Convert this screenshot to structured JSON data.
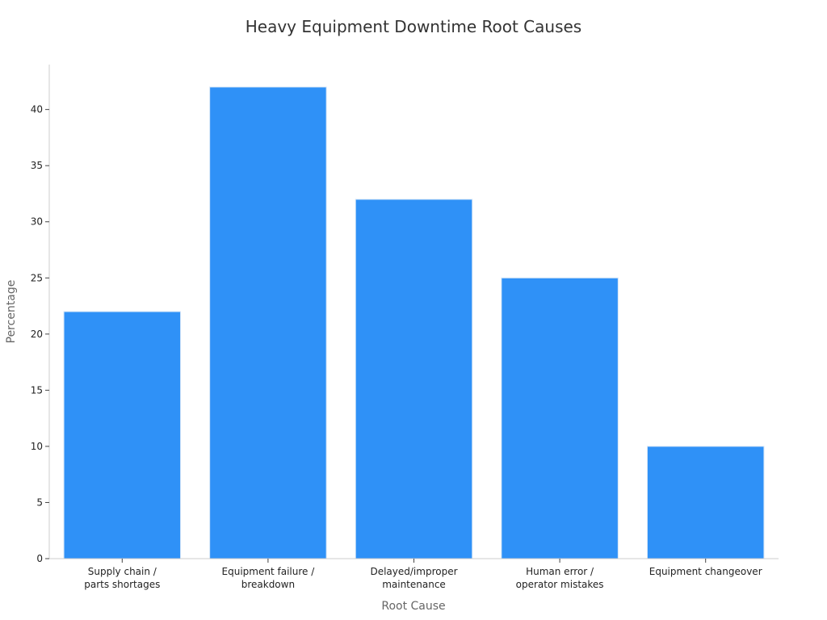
{
  "chart_data": {
    "type": "bar",
    "title": "Heavy Equipment Downtime Root Causes",
    "xlabel": "Root Cause",
    "ylabel": "Percentage",
    "categories": [
      [
        "Supply chain /",
        "parts shortages"
      ],
      [
        "Equipment failure /",
        "breakdown"
      ],
      [
        "Delayed/improper",
        "maintenance"
      ],
      [
        "Human error /",
        "operator mistakes"
      ],
      [
        "Equipment changeover"
      ]
    ],
    "values": [
      22,
      42,
      32,
      25,
      10
    ],
    "ylim": [
      0,
      44
    ],
    "yticks": [
      0,
      5,
      10,
      15,
      20,
      25,
      30,
      35,
      40
    ],
    "grid": false,
    "legend": "none",
    "bar_color": "#2F91F7",
    "bar_edge_color": "#d6e6f7"
  }
}
